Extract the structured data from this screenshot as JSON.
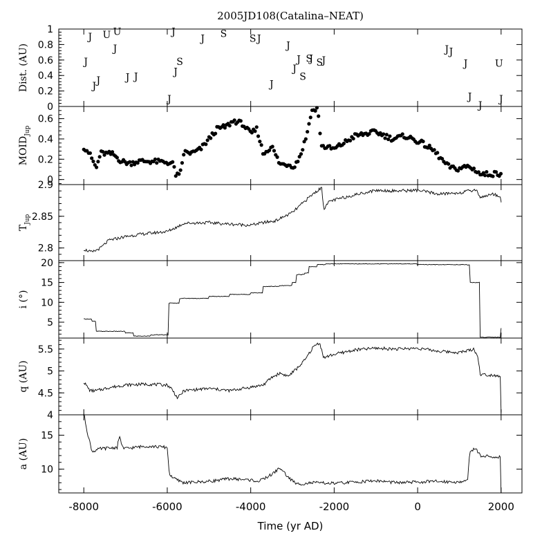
{
  "title": "2005JD108(Catalina–NEAT)",
  "colors": {
    "ink": "#000000",
    "background": "#ffffff"
  },
  "chart_data": {
    "type": "line",
    "xlabel": "Time (yr AD)",
    "xlim": [
      -8600,
      2500
    ],
    "xticks": [
      -8000,
      -6000,
      -4000,
      -2000,
      0,
      2000
    ],
    "panels": [
      {
        "id": "dist",
        "ylabel": "Dist. (AU)",
        "type": "scatter-letters",
        "ylim": [
          0,
          1
        ],
        "yticks": [
          0,
          0.2,
          0.4,
          0.6,
          0.8,
          1
        ],
        "yticklabels": [
          "0",
          "0.2",
          "0.4",
          "0.6",
          "0.8",
          "1"
        ],
        "points": [
          {
            "x": -7950,
            "y": 0.58,
            "label": "J"
          },
          {
            "x": -7850,
            "y": 0.9,
            "label": "J"
          },
          {
            "x": -7750,
            "y": 0.27,
            "label": "J"
          },
          {
            "x": -7650,
            "y": 0.34,
            "label": "J"
          },
          {
            "x": -7450,
            "y": 0.93,
            "label": "U"
          },
          {
            "x": -7250,
            "y": 0.75,
            "label": "J"
          },
          {
            "x": -7200,
            "y": 0.97,
            "label": "U"
          },
          {
            "x": -6950,
            "y": 0.38,
            "label": "J"
          },
          {
            "x": -6750,
            "y": 0.39,
            "label": "J"
          },
          {
            "x": -5950,
            "y": 0.1,
            "label": "J"
          },
          {
            "x": -5850,
            "y": 0.97,
            "label": "J"
          },
          {
            "x": -5800,
            "y": 0.45,
            "label": "J"
          },
          {
            "x": -5700,
            "y": 0.58,
            "label": "S"
          },
          {
            "x": -5150,
            "y": 0.88,
            "label": "J"
          },
          {
            "x": -4650,
            "y": 0.94,
            "label": "S"
          },
          {
            "x": -3950,
            "y": 0.88,
            "label": "S"
          },
          {
            "x": -3800,
            "y": 0.88,
            "label": "J"
          },
          {
            "x": -3500,
            "y": 0.29,
            "label": "J"
          },
          {
            "x": -3100,
            "y": 0.79,
            "label": "J"
          },
          {
            "x": -2950,
            "y": 0.49,
            "label": "J"
          },
          {
            "x": -2850,
            "y": 0.61,
            "label": "J"
          },
          {
            "x": -2750,
            "y": 0.39,
            "label": "S"
          },
          {
            "x": -2600,
            "y": 0.62,
            "label": "S"
          },
          {
            "x": -2550,
            "y": 0.62,
            "label": "J"
          },
          {
            "x": -2350,
            "y": 0.57,
            "label": "S"
          },
          {
            "x": -2250,
            "y": 0.6,
            "label": "J"
          },
          {
            "x": 700,
            "y": 0.74,
            "label": "J"
          },
          {
            "x": 800,
            "y": 0.71,
            "label": "J"
          },
          {
            "x": 1150,
            "y": 0.56,
            "label": "J"
          },
          {
            "x": 1250,
            "y": 0.13,
            "label": "J"
          },
          {
            "x": 1500,
            "y": 0.02,
            "label": "J"
          },
          {
            "x": 1950,
            "y": 0.56,
            "label": "U"
          },
          {
            "x": 2000,
            "y": 0.1,
            "label": "J"
          }
        ]
      },
      {
        "id": "moid",
        "ylabel": "MOID",
        "ylabel_sub": "Jup",
        "type": "scatter",
        "ylim": [
          -0.05,
          0.72
        ],
        "yticks": [
          0,
          0.2,
          0.4,
          0.6
        ],
        "yticklabels": [
          "0",
          "0.2",
          "0.4",
          "0.6"
        ],
        "knots": [
          [
            -8000,
            0.32
          ],
          [
            -7900,
            0.28
          ],
          [
            -7800,
            0.2
          ],
          [
            -7700,
            0.11
          ],
          [
            -7600,
            0.26
          ],
          [
            -7300,
            0.25
          ],
          [
            -7100,
            0.18
          ],
          [
            -6900,
            0.16
          ],
          [
            -6700,
            0.18
          ],
          [
            -6400,
            0.18
          ],
          [
            -6000,
            0.17
          ],
          [
            -5850,
            0.15
          ],
          [
            -5800,
            0.05
          ],
          [
            -5700,
            0.03
          ],
          [
            -5600,
            0.27
          ],
          [
            -5400,
            0.26
          ],
          [
            -5200,
            0.3
          ],
          [
            -5000,
            0.4
          ],
          [
            -4800,
            0.5
          ],
          [
            -4600,
            0.52
          ],
          [
            -4400,
            0.58
          ],
          [
            -4200,
            0.55
          ],
          [
            -4000,
            0.45
          ],
          [
            -3850,
            0.5
          ],
          [
            -3700,
            0.25
          ],
          [
            -3500,
            0.33
          ],
          [
            -3300,
            0.15
          ],
          [
            -3100,
            0.15
          ],
          [
            -2950,
            0.13
          ],
          [
            -2800,
            0.25
          ],
          [
            -2650,
            0.45
          ],
          [
            -2550,
            0.67
          ],
          [
            -2400,
            0.7
          ],
          [
            -2300,
            0.33
          ],
          [
            -2000,
            0.3
          ],
          [
            -1500,
            0.43
          ],
          [
            -1000,
            0.47
          ],
          [
            -600,
            0.4
          ],
          [
            -300,
            0.43
          ],
          [
            100,
            0.36
          ],
          [
            400,
            0.28
          ],
          [
            700,
            0.14
          ],
          [
            900,
            0.1
          ],
          [
            1200,
            0.13
          ],
          [
            1450,
            0.08
          ],
          [
            1500,
            0.05
          ],
          [
            2000,
            0.06
          ]
        ]
      },
      {
        "id": "tjup",
        "ylabel": "T",
        "ylabel_sub": "Jup",
        "type": "line",
        "ylim": [
          2.78,
          2.9
        ],
        "yticks": [
          2.8,
          2.85,
          2.9
        ],
        "yticklabels": [
          "2.8",
          "2.85",
          "2.9"
        ],
        "knots": [
          [
            -8000,
            2.798
          ],
          [
            -7800,
            2.793
          ],
          [
            -7600,
            2.8
          ],
          [
            -7400,
            2.812
          ],
          [
            -7000,
            2.818
          ],
          [
            -6600,
            2.822
          ],
          [
            -6000,
            2.826
          ],
          [
            -5800,
            2.832
          ],
          [
            -5600,
            2.839
          ],
          [
            -5000,
            2.84
          ],
          [
            -4600,
            2.838
          ],
          [
            -4000,
            2.836
          ],
          [
            -3700,
            2.84
          ],
          [
            -3400,
            2.843
          ],
          [
            -3000,
            2.856
          ],
          [
            -2800,
            2.868
          ],
          [
            -2600,
            2.88
          ],
          [
            -2450,
            2.888
          ],
          [
            -2300,
            2.895
          ],
          [
            -2250,
            2.862
          ],
          [
            -2100,
            2.874
          ],
          [
            -1500,
            2.884
          ],
          [
            -1000,
            2.891
          ],
          [
            -500,
            2.89
          ],
          [
            0,
            2.891
          ],
          [
            500,
            2.885
          ],
          [
            1000,
            2.887
          ],
          [
            1400,
            2.892
          ],
          [
            1500,
            2.88
          ],
          [
            1800,
            2.885
          ],
          [
            1980,
            2.882
          ],
          [
            2000,
            2.872
          ]
        ]
      },
      {
        "id": "incl",
        "ylabel": "i (°)",
        "type": "step",
        "ylim": [
          1,
          20.5
        ],
        "yticks": [
          5,
          10,
          15,
          20
        ],
        "yticklabels": [
          "5",
          "10",
          "15",
          "20"
        ],
        "knots": [
          [
            -8000,
            5.8
          ],
          [
            -7800,
            5.2
          ],
          [
            -7700,
            2.7
          ],
          [
            -7000,
            2.3
          ],
          [
            -6800,
            1.5
          ],
          [
            -6400,
            1.8
          ],
          [
            -6000,
            1.8
          ],
          [
            -5960,
            9.8
          ],
          [
            -5700,
            11.0
          ],
          [
            -5000,
            11.5
          ],
          [
            -4500,
            12.0
          ],
          [
            -4000,
            12.4
          ],
          [
            -3700,
            14.0
          ],
          [
            -3300,
            14.2
          ],
          [
            -3000,
            15.0
          ],
          [
            -2900,
            17.0
          ],
          [
            -2700,
            17.4
          ],
          [
            -2600,
            19.0
          ],
          [
            -2400,
            19.5
          ],
          [
            -2200,
            19.7
          ],
          [
            0,
            19.5
          ],
          [
            1200,
            19.4
          ],
          [
            1250,
            15.0
          ],
          [
            1450,
            15.0
          ],
          [
            1500,
            1.2
          ],
          [
            1950,
            1.2
          ],
          [
            2000,
            3.5
          ]
        ]
      },
      {
        "id": "q",
        "ylabel": "q (AU)",
        "type": "line",
        "ylim": [
          4,
          5.75
        ],
        "yticks": [
          4,
          4.5,
          5,
          5.5
        ],
        "yticklabels": [
          "4",
          "4.5",
          "5",
          "5.5"
        ],
        "knots": [
          [
            -8000,
            4.75
          ],
          [
            -7850,
            4.55
          ],
          [
            -7700,
            4.55
          ],
          [
            -7400,
            4.62
          ],
          [
            -7000,
            4.68
          ],
          [
            -6500,
            4.7
          ],
          [
            -6000,
            4.68
          ],
          [
            -5900,
            4.6
          ],
          [
            -5750,
            4.38
          ],
          [
            -5600,
            4.55
          ],
          [
            -5000,
            4.6
          ],
          [
            -4500,
            4.55
          ],
          [
            -4000,
            4.63
          ],
          [
            -3700,
            4.68
          ],
          [
            -3500,
            4.85
          ],
          [
            -3300,
            4.95
          ],
          [
            -3100,
            4.88
          ],
          [
            -2900,
            5.05
          ],
          [
            -2700,
            5.25
          ],
          [
            -2500,
            5.55
          ],
          [
            -2350,
            5.65
          ],
          [
            -2250,
            5.3
          ],
          [
            -2000,
            5.38
          ],
          [
            -1500,
            5.48
          ],
          [
            -1000,
            5.52
          ],
          [
            -500,
            5.5
          ],
          [
            0,
            5.52
          ],
          [
            500,
            5.45
          ],
          [
            1000,
            5.42
          ],
          [
            1350,
            5.5
          ],
          [
            1450,
            5.3
          ],
          [
            1500,
            4.92
          ],
          [
            1900,
            4.9
          ],
          [
            1980,
            4.88
          ],
          [
            2000,
            4.05
          ]
        ]
      },
      {
        "id": "a",
        "ylabel": "a (AU)",
        "type": "line",
        "ylim": [
          6.5,
          18
        ],
        "yticks": [
          10,
          15
        ],
        "yticklabels": [
          "10",
          "15"
        ],
        "knots": [
          [
            -8000,
            18.2
          ],
          [
            -7900,
            15.0
          ],
          [
            -7800,
            12.6
          ],
          [
            -7600,
            13.0
          ],
          [
            -7200,
            13.2
          ],
          [
            -7150,
            14.8
          ],
          [
            -7050,
            13.0
          ],
          [
            -6500,
            13.4
          ],
          [
            -6000,
            13.2
          ],
          [
            -5950,
            9.2
          ],
          [
            -5800,
            8.5
          ],
          [
            -5600,
            8.0
          ],
          [
            -5000,
            8.2
          ],
          [
            -4500,
            8.6
          ],
          [
            -4000,
            8.4
          ],
          [
            -3800,
            8.2
          ],
          [
            -3500,
            9.2
          ],
          [
            -3300,
            10.2
          ],
          [
            -3100,
            8.8
          ],
          [
            -2900,
            7.8
          ],
          [
            -2500,
            8.0
          ],
          [
            -2000,
            7.9
          ],
          [
            -1500,
            8.1
          ],
          [
            -1000,
            8.3
          ],
          [
            -500,
            8.0
          ],
          [
            0,
            8.1
          ],
          [
            500,
            8.2
          ],
          [
            1000,
            8.1
          ],
          [
            1200,
            8.3
          ],
          [
            1250,
            12.8
          ],
          [
            1400,
            12.9
          ],
          [
            1500,
            12.0
          ],
          [
            1800,
            11.8
          ],
          [
            1980,
            11.8
          ],
          [
            2000,
            6.6
          ]
        ]
      }
    ]
  }
}
